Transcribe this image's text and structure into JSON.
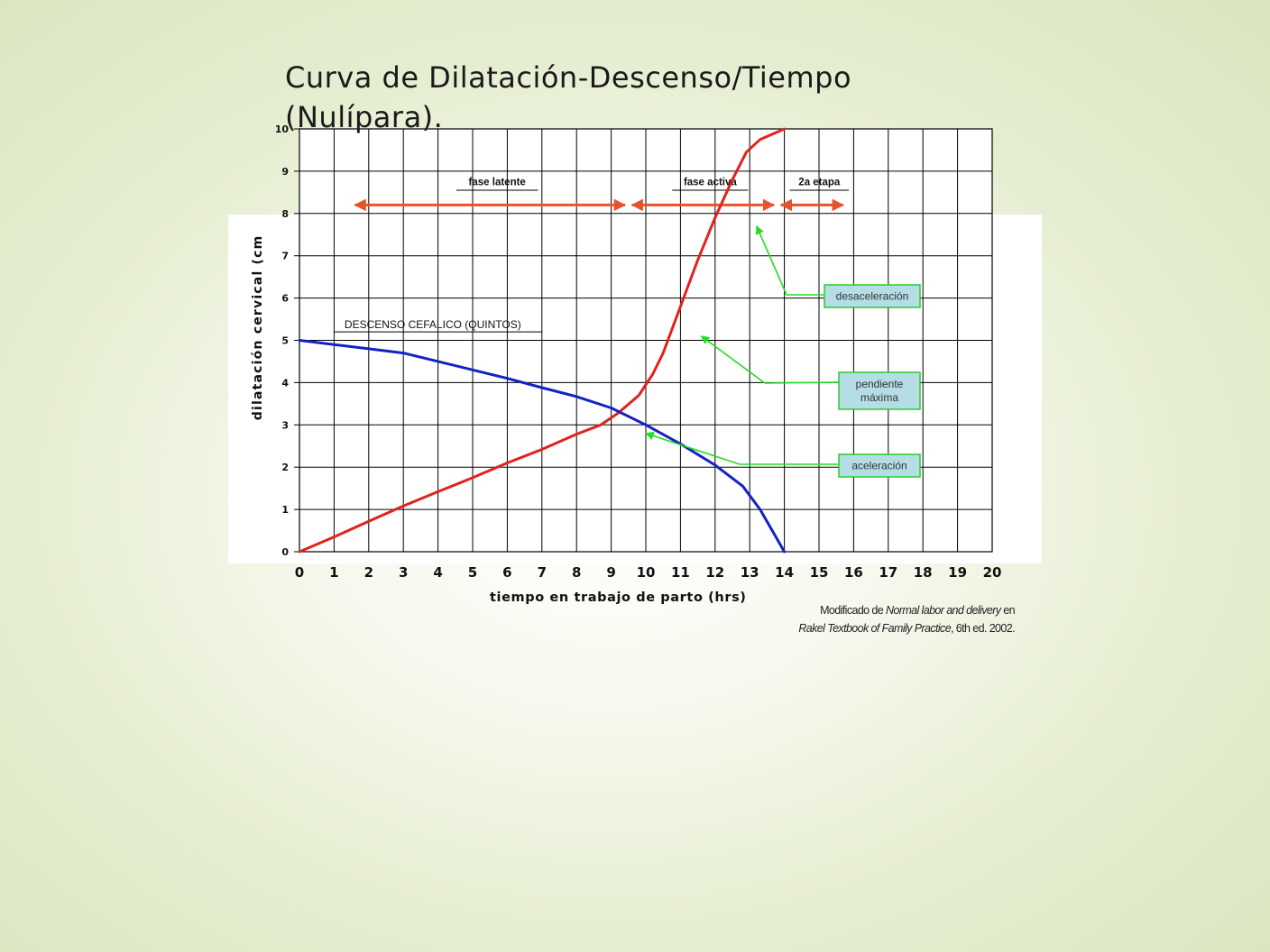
{
  "slide": {
    "title": "Curva de Dilatación-Descenso/Tiempo (Nulípara)."
  },
  "credit": {
    "line1_prefix": "Modificado de ",
    "line1_italic": "Normal labor and delivery",
    "line1_suffix": " en",
    "line2_italic": "Rakel Textbook of Family Practice",
    "line2_suffix": ", 6th ed. 2002."
  },
  "chart_data": {
    "type": "line",
    "title": "Curva de Dilatación-Descenso/Tiempo (Nulípara).",
    "xlabel": "tiempo en trabajo de parto (hrs)",
    "ylabel": "dilatación cervical (cm",
    "xlim": [
      0,
      20
    ],
    "ylim": [
      0,
      10
    ],
    "x_ticks": [
      0,
      1,
      2,
      3,
      4,
      5,
      6,
      7,
      8,
      9,
      10,
      11,
      12,
      13,
      14,
      15,
      16,
      17,
      18,
      19,
      20
    ],
    "y_ticks": [
      0,
      1,
      2,
      3,
      4,
      5,
      6,
      7,
      8,
      9,
      10
    ],
    "grid": true,
    "legend": "none",
    "series": [
      {
        "name": "",
        "color": "#e0231c",
        "points": [
          [
            0,
            0
          ],
          [
            1,
            0.35
          ],
          [
            2,
            0.72
          ],
          [
            3,
            1.08
          ],
          [
            4,
            1.42
          ],
          [
            5,
            1.75
          ],
          [
            6,
            2.1
          ],
          [
            7,
            2.42
          ],
          [
            8,
            2.78
          ],
          [
            8.7,
            3.0
          ],
          [
            9.2,
            3.28
          ],
          [
            9.8,
            3.7
          ],
          [
            10.2,
            4.2
          ],
          [
            10.5,
            4.7
          ],
          [
            11,
            5.8
          ],
          [
            11.5,
            6.9
          ],
          [
            12,
            7.9
          ],
          [
            12.5,
            8.8
          ],
          [
            12.9,
            9.45
          ],
          [
            13.3,
            9.75
          ],
          [
            14,
            10
          ]
        ]
      },
      {
        "name": "",
        "color": "#1421c4",
        "points": [
          [
            0,
            5
          ],
          [
            1,
            4.9
          ],
          [
            2,
            4.8
          ],
          [
            3,
            4.7
          ],
          [
            4,
            4.5
          ],
          [
            5,
            4.3
          ],
          [
            6,
            4.1
          ],
          [
            7,
            3.88
          ],
          [
            8,
            3.67
          ],
          [
            9,
            3.4
          ],
          [
            10,
            3.0
          ],
          [
            11,
            2.55
          ],
          [
            12,
            2.05
          ],
          [
            12.8,
            1.55
          ],
          [
            13.3,
            1.0
          ],
          [
            14,
            0
          ]
        ]
      }
    ],
    "annotations": {
      "descent_label": "DESCENSO  CEFALICO (QUINTOS)",
      "phases": [
        {
          "label": "fase latente",
          "x_start": 1.5,
          "x_end": 9.5
        },
        {
          "label": "fase activa",
          "x_start": 9.5,
          "x_end": 13.8
        },
        {
          "label": "2a etapa",
          "x_start": 13.8,
          "x_end": 15.8
        }
      ],
      "callouts": [
        {
          "label": "desaceleración",
          "target": [
            13.2,
            7.7
          ]
        },
        {
          "label": "pendiente máxima",
          "target": [
            11.6,
            5.1
          ]
        },
        {
          "label": "aceleración",
          "target": [
            10.0,
            2.8
          ]
        }
      ]
    },
    "colors": {
      "dilation_curve": "#e0231c",
      "descent_curve": "#1421c4",
      "phase_arrows": "#e8542a",
      "callout_line": "#22dd22",
      "callout_fill": "#b4dde5",
      "callout_border": "#2ccc2c"
    }
  }
}
